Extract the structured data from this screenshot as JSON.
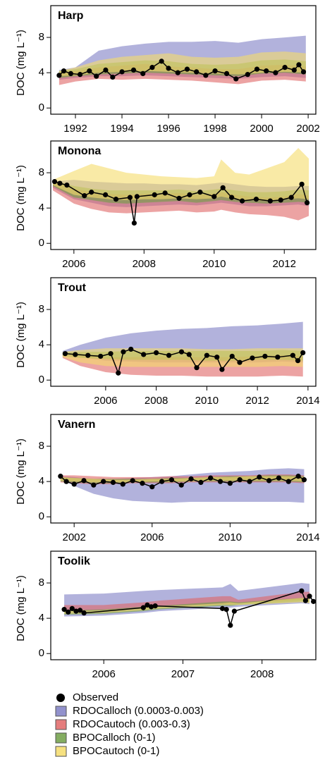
{
  "chart_data": [
    {
      "type": "band",
      "title": "Harp",
      "ylabel": "DOC (mg L⁻¹)",
      "x": [
        1991.3,
        1992,
        1993,
        1994,
        1995,
        1996,
        1997,
        1998,
        1999,
        2000,
        2001,
        2001.9
      ],
      "bands": [
        {
          "color": "#7f7fc4",
          "low": [
            3.2,
            3.4,
            3.6,
            3.6,
            3.7,
            3.6,
            3.5,
            3.4,
            3.3,
            3.5,
            3.6,
            3.4
          ],
          "high": [
            4.3,
            4.6,
            6.5,
            7.0,
            7.3,
            7.5,
            7.5,
            7.6,
            7.4,
            7.8,
            8.0,
            8.2
          ]
        },
        {
          "color": "#e06666",
          "low": [
            2.6,
            3.0,
            3.3,
            3.2,
            3.3,
            3.2,
            3.1,
            2.9,
            2.7,
            3.1,
            3.2,
            3.0
          ],
          "high": [
            4.0,
            4.2,
            4.6,
            4.8,
            5.0,
            4.7,
            4.6,
            4.4,
            4.4,
            4.8,
            4.9,
            4.7
          ]
        },
        {
          "color": "#6f9f45",
          "low": [
            3.4,
            3.6,
            3.8,
            3.9,
            4.0,
            3.9,
            3.8,
            3.7,
            3.6,
            3.9,
            4.0,
            3.8
          ],
          "high": [
            4.2,
            4.4,
            5.0,
            5.2,
            5.4,
            5.3,
            5.0,
            4.9,
            5.0,
            5.4,
            5.5,
            5.3
          ]
        },
        {
          "color": "#f5dc6a",
          "low": [
            3.6,
            3.7,
            4.0,
            4.1,
            4.2,
            4.1,
            4.0,
            3.9,
            3.8,
            4.0,
            4.1,
            4.0
          ],
          "high": [
            4.2,
            4.6,
            5.4,
            5.8,
            6.0,
            6.2,
            5.8,
            5.7,
            5.8,
            6.3,
            6.4,
            6.2
          ]
        }
      ],
      "observed": {
        "color": "#000000",
        "x": [
          1991.3,
          1991.5,
          1991.8,
          1992.2,
          1992.6,
          1992.9,
          1993.3,
          1993.6,
          1994.0,
          1994.5,
          1994.9,
          1995.3,
          1995.7,
          1996.0,
          1996.4,
          1996.8,
          1997.2,
          1997.6,
          1998.0,
          1998.5,
          1998.9,
          1999.4,
          1999.8,
          2000.2,
          2000.6,
          2001.0,
          2001.4,
          2001.6,
          2001.8
        ],
        "values": [
          3.7,
          4.2,
          3.9,
          3.8,
          4.2,
          3.6,
          4.3,
          3.5,
          4.1,
          4.3,
          3.9,
          4.6,
          5.3,
          4.5,
          4.0,
          4.4,
          4.1,
          3.7,
          4.2,
          3.9,
          3.3,
          3.8,
          4.4,
          4.2,
          4.0,
          4.6,
          4.3,
          4.9,
          4.1
        ]
      },
      "xlim": [
        1990.94,
        2002.33
      ],
      "xticks": [
        1992,
        1994,
        1996,
        1998,
        2000,
        2002
      ],
      "ylim": [
        -0.7,
        11.6
      ],
      "yticks": [
        0,
        4,
        8
      ]
    },
    {
      "type": "band",
      "title": "Monona",
      "ylabel": "DOC (mg L⁻¹)",
      "x": [
        2005.4,
        2006,
        2006.5,
        2007,
        2007.5,
        2008,
        2008.5,
        2009,
        2009.5,
        2010,
        2010.2,
        2010.6,
        2011,
        2011.5,
        2012,
        2012.4,
        2012.7
      ],
      "bands": [
        {
          "color": "#7f7fc4",
          "low": [
            6.3,
            5.0,
            4.6,
            4.2,
            4.1,
            4.2,
            4.3,
            4.4,
            4.3,
            4.5,
            4.6,
            4.4,
            4.2,
            4.2,
            4.3,
            4.4,
            4.2
          ],
          "high": [
            7.0,
            7.2,
            7.0,
            6.9,
            6.8,
            6.8,
            6.7,
            6.7,
            6.6,
            6.8,
            6.9,
            6.7,
            6.5,
            6.4,
            6.4,
            6.5,
            6.5
          ]
        },
        {
          "color": "#e06666",
          "low": [
            6.0,
            4.5,
            3.9,
            3.5,
            3.4,
            3.5,
            3.6,
            3.7,
            3.5,
            3.6,
            3.8,
            3.5,
            3.3,
            3.2,
            3.0,
            2.6,
            3.1
          ],
          "high": [
            7.1,
            6.2,
            5.8,
            5.6,
            5.5,
            5.6,
            5.6,
            5.7,
            5.5,
            5.6,
            5.8,
            5.5,
            5.3,
            5.2,
            5.3,
            5.6,
            5.4
          ]
        },
        {
          "color": "#6f9f45",
          "low": [
            6.5,
            5.2,
            4.9,
            4.6,
            4.5,
            4.6,
            4.7,
            4.8,
            4.6,
            4.8,
            4.9,
            4.7,
            4.6,
            4.5,
            4.6,
            4.7,
            4.6
          ],
          "high": [
            7.1,
            6.5,
            6.2,
            6.0,
            6.0,
            6.0,
            6.0,
            6.1,
            5.9,
            6.1,
            6.2,
            6.0,
            5.8,
            5.8,
            5.9,
            6.1,
            6.0
          ]
        },
        {
          "color": "#f5dc6a",
          "low": [
            6.6,
            5.5,
            5.2,
            5.0,
            4.9,
            5.0,
            5.0,
            5.1,
            5.0,
            5.1,
            5.3,
            5.0,
            4.9,
            4.8,
            5.0,
            5.1,
            5.0
          ],
          "high": [
            7.2,
            8.2,
            9.0,
            8.5,
            8.0,
            7.8,
            7.6,
            7.5,
            7.4,
            7.6,
            9.5,
            8.0,
            7.8,
            8.5,
            9.2,
            10.8,
            9.6
          ]
        }
      ],
      "observed": {
        "color": "#000000",
        "x": [
          2005.45,
          2005.6,
          2005.8,
          2006.3,
          2006.5,
          2006.9,
          2007.2,
          2007.6,
          2007.72,
          2007.8,
          2008.3,
          2008.6,
          2009.0,
          2009.3,
          2009.6,
          2010.0,
          2010.25,
          2010.5,
          2010.8,
          2011.2,
          2011.6,
          2011.9,
          2012.2,
          2012.5,
          2012.65
        ],
        "values": [
          7.0,
          6.8,
          6.6,
          5.4,
          5.8,
          5.5,
          5.0,
          5.2,
          2.3,
          5.3,
          5.5,
          5.7,
          5.1,
          5.5,
          5.8,
          5.3,
          6.3,
          5.2,
          4.8,
          5.0,
          4.8,
          4.9,
          5.2,
          6.7,
          4.6
        ]
      },
      "xlim": [
        2005.34,
        2012.9
      ],
      "xticks": [
        2006,
        2008,
        2010,
        2012
      ],
      "ylim": [
        -0.7,
        11.6
      ],
      "yticks": [
        0,
        4,
        8
      ]
    },
    {
      "type": "band",
      "title": "Trout",
      "ylabel": "DOC (mg L⁻¹)",
      "x": [
        2004.3,
        2005,
        2006,
        2007,
        2008,
        2009,
        2010,
        2011,
        2012,
        2013,
        2013.8
      ],
      "bands": [
        {
          "color": "#7f7fc4",
          "low": [
            2.8,
            2.6,
            2.2,
            2.1,
            2.0,
            2.0,
            2.0,
            2.0,
            2.0,
            2.1,
            2.0
          ],
          "high": [
            3.3,
            4.0,
            4.8,
            5.3,
            5.6,
            5.8,
            5.9,
            6.1,
            6.2,
            6.4,
            6.6
          ]
        },
        {
          "color": "#e06666",
          "low": [
            2.5,
            1.6,
            0.9,
            0.6,
            0.5,
            0.5,
            0.4,
            0.4,
            0.4,
            0.5,
            0.4
          ],
          "high": [
            3.0,
            2.8,
            2.6,
            2.6,
            2.7,
            2.6,
            2.6,
            2.6,
            2.7,
            2.8,
            2.7
          ]
        },
        {
          "color": "#6f9f45",
          "low": [
            2.7,
            2.5,
            2.4,
            2.3,
            2.3,
            2.3,
            2.2,
            2.2,
            2.3,
            2.3,
            2.2
          ],
          "high": [
            3.1,
            3.2,
            3.2,
            3.3,
            3.3,
            3.3,
            3.3,
            3.3,
            3.3,
            3.4,
            3.3
          ]
        },
        {
          "color": "#f5dc6a",
          "low": [
            2.6,
            2.0,
            1.6,
            1.5,
            1.5,
            1.5,
            1.5,
            1.5,
            1.5,
            1.6,
            1.5
          ],
          "high": [
            3.2,
            3.4,
            3.6,
            3.6,
            3.6,
            3.6,
            3.5,
            3.5,
            3.6,
            3.6,
            3.6
          ]
        }
      ],
      "observed": {
        "color": "#000000",
        "x": [
          2004.4,
          2004.8,
          2005.3,
          2005.8,
          2006.2,
          2006.5,
          2006.7,
          2007.0,
          2007.5,
          2008.0,
          2008.5,
          2009.0,
          2009.3,
          2009.6,
          2010.0,
          2010.4,
          2010.6,
          2011.0,
          2011.3,
          2011.8,
          2012.3,
          2012.8,
          2013.4,
          2013.6,
          2013.8
        ],
        "values": [
          3.0,
          2.9,
          2.8,
          2.7,
          3.0,
          0.8,
          3.2,
          3.5,
          2.9,
          3.1,
          2.8,
          3.2,
          2.9,
          1.4,
          2.8,
          2.6,
          1.2,
          2.7,
          2.0,
          2.5,
          2.7,
          2.6,
          2.8,
          2.2,
          3.1
        ]
      },
      "xlim": [
        2003.83,
        2014.31
      ],
      "xticks": [
        2006,
        2008,
        2010,
        2012,
        2014
      ],
      "ylim": [
        -0.7,
        11.6
      ],
      "yticks": [
        0,
        4,
        8
      ]
    },
    {
      "type": "band",
      "title": "Vanern",
      "ylabel": "DOC (mg L⁻¹)",
      "x": [
        2001.3,
        2002,
        2003,
        2004,
        2005,
        2006,
        2007,
        2008,
        2009,
        2010,
        2011,
        2012,
        2013,
        2013.8
      ],
      "bands": [
        {
          "color": "#7f7fc4",
          "low": [
            4.3,
            3.5,
            2.6,
            2.1,
            1.8,
            1.7,
            1.6,
            1.7,
            1.7,
            1.7,
            1.7,
            1.7,
            1.7,
            1.6
          ],
          "high": [
            4.6,
            4.5,
            4.3,
            4.3,
            4.4,
            4.5,
            4.6,
            4.8,
            5.0,
            5.1,
            5.2,
            5.4,
            5.5,
            5.4
          ]
        },
        {
          "color": "#e06666",
          "low": [
            3.9,
            3.8,
            3.7,
            3.7,
            3.8,
            3.8,
            3.8,
            3.9,
            3.9,
            3.9,
            3.9,
            3.9,
            3.9,
            3.8
          ],
          "high": [
            4.7,
            4.7,
            4.6,
            4.5,
            4.5,
            4.5,
            4.6,
            4.6,
            4.7,
            4.7,
            4.7,
            4.8,
            4.8,
            4.7
          ]
        },
        {
          "color": "#6f9f45",
          "low": [
            4.0,
            3.9,
            3.8,
            3.8,
            3.9,
            3.9,
            3.9,
            4.0,
            4.0,
            4.0,
            4.0,
            4.0,
            4.0,
            3.9
          ],
          "high": [
            4.5,
            4.4,
            4.3,
            4.3,
            4.3,
            4.3,
            4.4,
            4.4,
            4.5,
            4.6,
            4.6,
            4.7,
            4.7,
            4.6
          ]
        },
        {
          "color": "#f5dc6a",
          "low": [
            4.1,
            4.0,
            3.9,
            3.9,
            3.9,
            4.0,
            4.0,
            4.0,
            4.1,
            4.1,
            4.1,
            4.1,
            4.1,
            4.0
          ],
          "high": [
            4.5,
            4.4,
            4.3,
            4.2,
            4.2,
            4.3,
            4.3,
            4.4,
            4.5,
            4.5,
            4.6,
            4.6,
            4.6,
            4.5
          ]
        }
      ],
      "observed": {
        "color": "#000000",
        "x": [
          2001.3,
          2001.6,
          2002.0,
          2002.5,
          2003.0,
          2003.5,
          2004.0,
          2004.5,
          2005.0,
          2005.5,
          2006.0,
          2006.5,
          2007.0,
          2007.5,
          2008.0,
          2008.5,
          2009.0,
          2009.5,
          2010.0,
          2010.5,
          2011.0,
          2011.5,
          2012.0,
          2012.5,
          2013.0,
          2013.5,
          2013.8
        ],
        "values": [
          4.6,
          4.0,
          3.7,
          4.1,
          3.6,
          4.0,
          3.9,
          3.7,
          4.1,
          3.8,
          3.4,
          4.0,
          4.2,
          3.6,
          4.3,
          3.9,
          4.4,
          4.0,
          3.8,
          4.2,
          4.0,
          4.5,
          4.1,
          4.4,
          4.0,
          4.6,
          4.2
        ]
      },
      "xlim": [
        2000.8,
        2014.4
      ],
      "xticks": [
        2002,
        2006,
        2010,
        2014
      ],
      "ylim": [
        -0.7,
        11.6
      ],
      "yticks": [
        0,
        4,
        8
      ]
    },
    {
      "type": "band",
      "title": "Toolik",
      "ylabel": "DOC (mg L⁻¹)",
      "x": [
        2005.5,
        2006.0,
        2006.5,
        2006.7,
        2007.5,
        2007.6,
        2007.7,
        2008.5,
        2008.6
      ],
      "bands": [
        {
          "color": "#7f7fc4",
          "low": [
            4.2,
            4.3,
            4.6,
            4.8,
            5.2,
            5.2,
            5.3,
            5.7,
            5.6
          ],
          "high": [
            6.7,
            6.8,
            7.1,
            7.2,
            7.5,
            7.9,
            7.1,
            8.0,
            7.9
          ]
        },
        {
          "color": "#e06666",
          "low": [
            4.8,
            4.9,
            5.1,
            5.3,
            5.6,
            5.6,
            5.7,
            6.1,
            6.1
          ],
          "high": [
            5.5,
            5.5,
            5.8,
            6.0,
            6.5,
            6.5,
            6.1,
            7.0,
            7.0
          ]
        },
        {
          "color": "#6f9f45",
          "low": [
            4.4,
            4.5,
            4.8,
            5.0,
            5.4,
            5.4,
            5.5,
            5.9,
            5.8
          ],
          "high": [
            4.9,
            5.0,
            5.3,
            5.4,
            5.9,
            5.9,
            5.8,
            6.3,
            6.2
          ]
        },
        {
          "color": "#f5dc6a",
          "low": [
            4.5,
            4.6,
            4.9,
            5.1,
            5.5,
            5.5,
            5.5,
            5.8,
            5.7
          ],
          "high": [
            4.8,
            4.9,
            5.2,
            5.3,
            5.7,
            5.8,
            5.7,
            6.3,
            6.2
          ]
        }
      ],
      "observed": {
        "color": "#000000",
        "x": [
          2005.5,
          2005.55,
          2005.6,
          2005.65,
          2005.7,
          2005.75,
          2006.5,
          2006.55,
          2006.6,
          2006.65,
          2007.5,
          2007.55,
          2007.6,
          2007.65,
          2008.5,
          2008.55,
          2008.6,
          2008.65
        ],
        "values": [
          5.0,
          4.7,
          5.1,
          4.8,
          4.9,
          4.6,
          5.2,
          5.5,
          5.3,
          5.4,
          5.1,
          5.0,
          3.2,
          4.8,
          7.1,
          6.0,
          6.5,
          5.9
        ]
      },
      "xlim": [
        2005.33,
        2008.68
      ],
      "xticks": [
        2006,
        2007,
        2008
      ],
      "ylim": [
        -0.7,
        11.6
      ],
      "yticks": [
        0,
        4,
        8
      ]
    }
  ],
  "legend": [
    {
      "name": "Observed",
      "color": "#000000"
    },
    {
      "name": "RDOCalloch (0.0003-0.003)",
      "color": "#7f7fc4"
    },
    {
      "name": "RDOCautoch (0.003-0.3)",
      "color": "#e06666"
    },
    {
      "name": "BPOCalloch (0-1)",
      "color": "#6f9f45"
    },
    {
      "name": "BPOCautoch (0-1)",
      "color": "#f5dc6a"
    }
  ]
}
